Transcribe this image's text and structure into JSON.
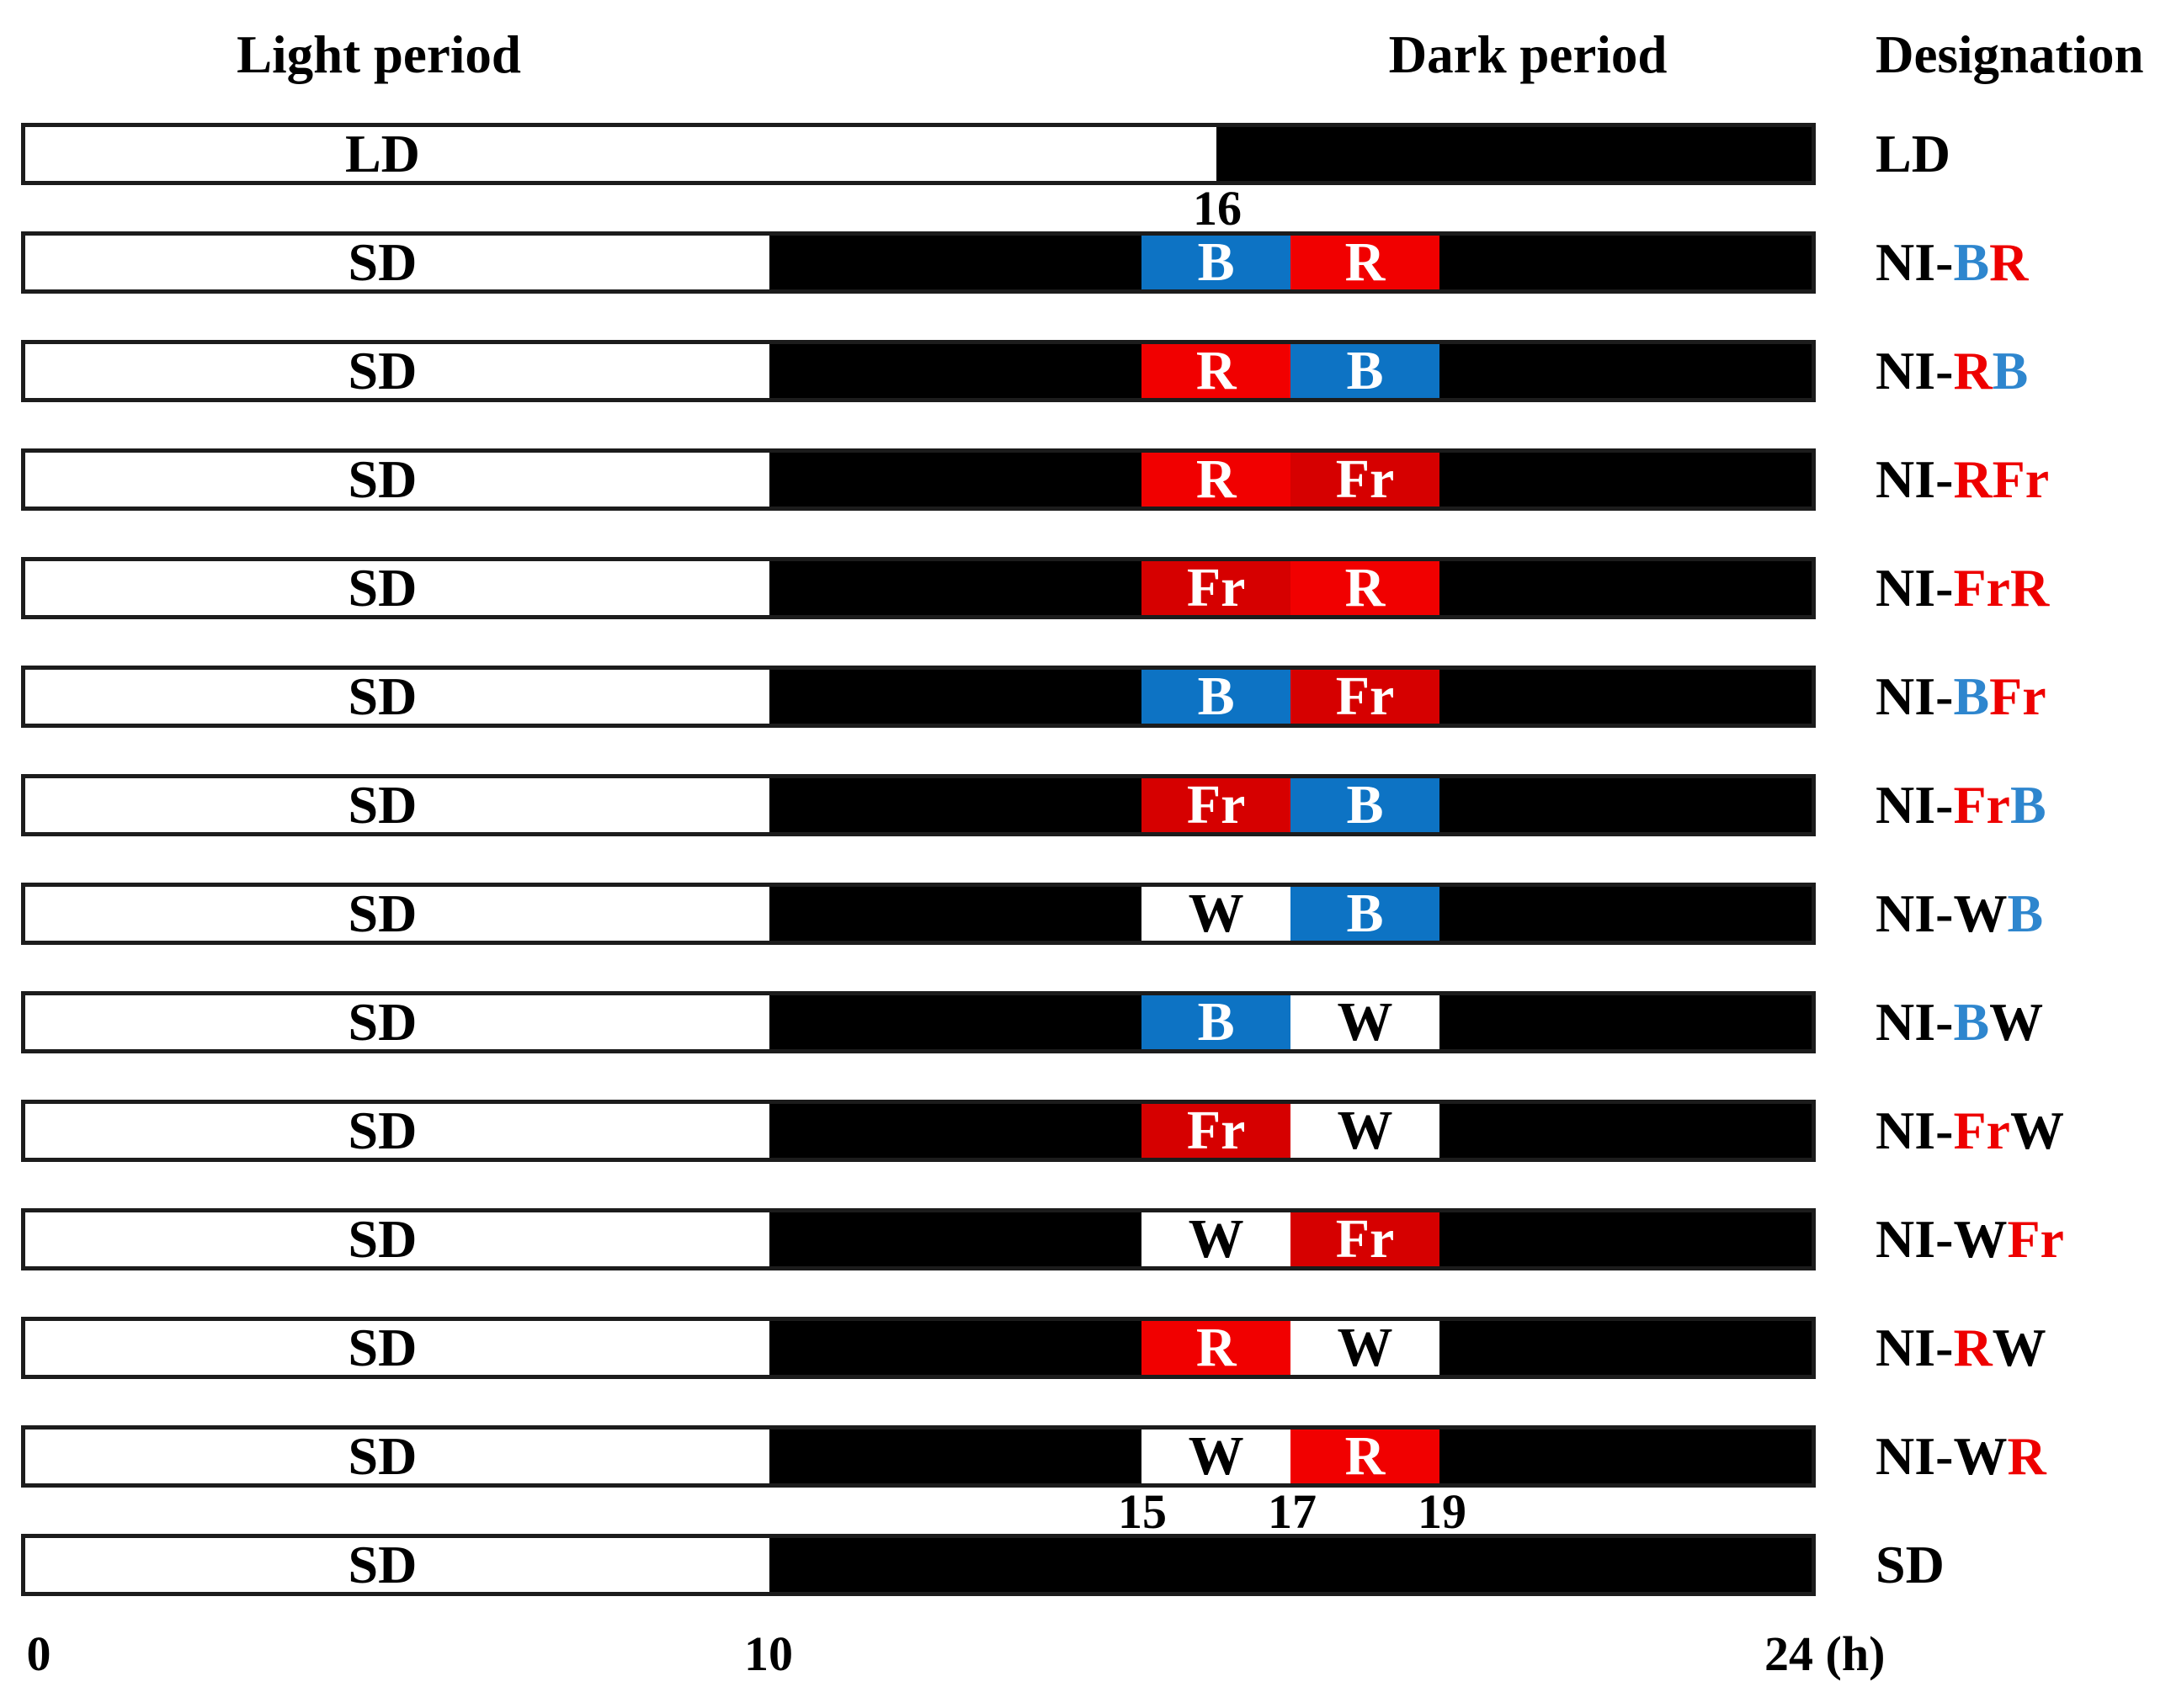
{
  "headers": {
    "light_period": "Light period",
    "dark_period": "Dark period",
    "designation": "Designation"
  },
  "axis": {
    "start": "0",
    "mid": "10",
    "end": "24 (h)",
    "ld_end_tick": "16",
    "ni_ticks": [
      "15",
      "17",
      "19"
    ],
    "unit": "h",
    "range": [
      0,
      24
    ]
  },
  "colors": {
    "blue": "#0D73C4",
    "red": "#F10000",
    "farred": "#D60000",
    "white": "#FFFFFF",
    "black": "#000000",
    "designation_blue": "#2E86CE",
    "designation_red": "#EE0000",
    "bar_border": "#1C1C1C"
  },
  "chart_data": {
    "type": "timeline",
    "x_unit": "hours",
    "x_range": [
      0,
      24
    ],
    "ni_window_hours": [
      15,
      17,
      19
    ],
    "rows": [
      {
        "key": "ld",
        "bar_label": "LD",
        "light_end": 16,
        "segments": [],
        "designation": [
          {
            "text": "LD",
            "color": "black"
          }
        ]
      },
      {
        "key": "ni-br",
        "bar_label": "SD",
        "light_end": 10,
        "segments": [
          {
            "label": "B",
            "color": "blue",
            "start": 15,
            "end": 17
          },
          {
            "label": "R",
            "color": "red",
            "start": 17,
            "end": 19
          }
        ],
        "designation": [
          {
            "text": "NI-",
            "color": "black"
          },
          {
            "text": "B",
            "color": "blue"
          },
          {
            "text": "R",
            "color": "red"
          }
        ]
      },
      {
        "key": "ni-rb",
        "bar_label": "SD",
        "light_end": 10,
        "segments": [
          {
            "label": "R",
            "color": "red",
            "start": 15,
            "end": 17
          },
          {
            "label": "B",
            "color": "blue",
            "start": 17,
            "end": 19
          }
        ],
        "designation": [
          {
            "text": "NI-",
            "color": "black"
          },
          {
            "text": "R",
            "color": "red"
          },
          {
            "text": "B",
            "color": "blue"
          }
        ]
      },
      {
        "key": "ni-rfr",
        "bar_label": "SD",
        "light_end": 10,
        "segments": [
          {
            "label": "R",
            "color": "red",
            "start": 15,
            "end": 17
          },
          {
            "label": "Fr",
            "color": "farred",
            "start": 17,
            "end": 19
          }
        ],
        "designation": [
          {
            "text": "NI-",
            "color": "black"
          },
          {
            "text": "R",
            "color": "red"
          },
          {
            "text": "Fr",
            "color": "red"
          }
        ]
      },
      {
        "key": "ni-frr",
        "bar_label": "SD",
        "light_end": 10,
        "segments": [
          {
            "label": "Fr",
            "color": "farred",
            "start": 15,
            "end": 17
          },
          {
            "label": "R",
            "color": "red",
            "start": 17,
            "end": 19
          }
        ],
        "designation": [
          {
            "text": "NI-",
            "color": "black"
          },
          {
            "text": "Fr",
            "color": "red"
          },
          {
            "text": "R",
            "color": "red"
          }
        ]
      },
      {
        "key": "ni-bfr",
        "bar_label": "SD",
        "light_end": 10,
        "segments": [
          {
            "label": "B",
            "color": "blue",
            "start": 15,
            "end": 17
          },
          {
            "label": "Fr",
            "color": "farred",
            "start": 17,
            "end": 19
          }
        ],
        "designation": [
          {
            "text": "NI-",
            "color": "black"
          },
          {
            "text": "B",
            "color": "blue"
          },
          {
            "text": "Fr",
            "color": "red"
          }
        ]
      },
      {
        "key": "ni-frb",
        "bar_label": "SD",
        "light_end": 10,
        "segments": [
          {
            "label": "Fr",
            "color": "farred",
            "start": 15,
            "end": 17
          },
          {
            "label": "B",
            "color": "blue",
            "start": 17,
            "end": 19
          }
        ],
        "designation": [
          {
            "text": "NI-",
            "color": "black"
          },
          {
            "text": "Fr",
            "color": "red"
          },
          {
            "text": "B",
            "color": "blue"
          }
        ]
      },
      {
        "key": "ni-wb",
        "bar_label": "SD",
        "light_end": 10,
        "segments": [
          {
            "label": "W",
            "color": "white",
            "start": 15,
            "end": 17
          },
          {
            "label": "B",
            "color": "blue",
            "start": 17,
            "end": 19
          }
        ],
        "designation": [
          {
            "text": "NI-",
            "color": "black"
          },
          {
            "text": "W",
            "color": "black"
          },
          {
            "text": "B",
            "color": "blue"
          }
        ]
      },
      {
        "key": "ni-bw",
        "bar_label": "SD",
        "light_end": 10,
        "segments": [
          {
            "label": "B",
            "color": "blue",
            "start": 15,
            "end": 17
          },
          {
            "label": "W",
            "color": "white",
            "start": 17,
            "end": 19
          }
        ],
        "designation": [
          {
            "text": "NI-",
            "color": "black"
          },
          {
            "text": "B",
            "color": "blue"
          },
          {
            "text": "W",
            "color": "black"
          }
        ]
      },
      {
        "key": "ni-frw",
        "bar_label": "SD",
        "light_end": 10,
        "segments": [
          {
            "label": "Fr",
            "color": "farred",
            "start": 15,
            "end": 17
          },
          {
            "label": "W",
            "color": "white",
            "start": 17,
            "end": 19
          }
        ],
        "designation": [
          {
            "text": "NI-",
            "color": "black"
          },
          {
            "text": "Fr",
            "color": "red"
          },
          {
            "text": "W",
            "color": "black"
          }
        ]
      },
      {
        "key": "ni-wfr",
        "bar_label": "SD",
        "light_end": 10,
        "segments": [
          {
            "label": "W",
            "color": "white",
            "start": 15,
            "end": 17
          },
          {
            "label": "Fr",
            "color": "farred",
            "start": 17,
            "end": 19
          }
        ],
        "designation": [
          {
            "text": "NI-",
            "color": "black"
          },
          {
            "text": "W",
            "color": "black"
          },
          {
            "text": "Fr",
            "color": "red"
          }
        ]
      },
      {
        "key": "ni-rw",
        "bar_label": "SD",
        "light_end": 10,
        "segments": [
          {
            "label": "R",
            "color": "red",
            "start": 15,
            "end": 17
          },
          {
            "label": "W",
            "color": "white",
            "start": 17,
            "end": 19
          }
        ],
        "designation": [
          {
            "text": "NI-",
            "color": "black"
          },
          {
            "text": "R",
            "color": "red"
          },
          {
            "text": "W",
            "color": "black"
          }
        ]
      },
      {
        "key": "ni-wr",
        "bar_label": "SD",
        "light_end": 10,
        "segments": [
          {
            "label": "W",
            "color": "white",
            "start": 15,
            "end": 17
          },
          {
            "label": "R",
            "color": "red",
            "start": 17,
            "end": 19
          }
        ],
        "designation": [
          {
            "text": "NI-",
            "color": "black"
          },
          {
            "text": "W",
            "color": "black"
          },
          {
            "text": "R",
            "color": "red"
          }
        ]
      },
      {
        "key": "sd",
        "bar_label": "SD",
        "light_end": 10,
        "segments": [],
        "designation": [
          {
            "text": "SD",
            "color": "black"
          }
        ]
      }
    ]
  }
}
